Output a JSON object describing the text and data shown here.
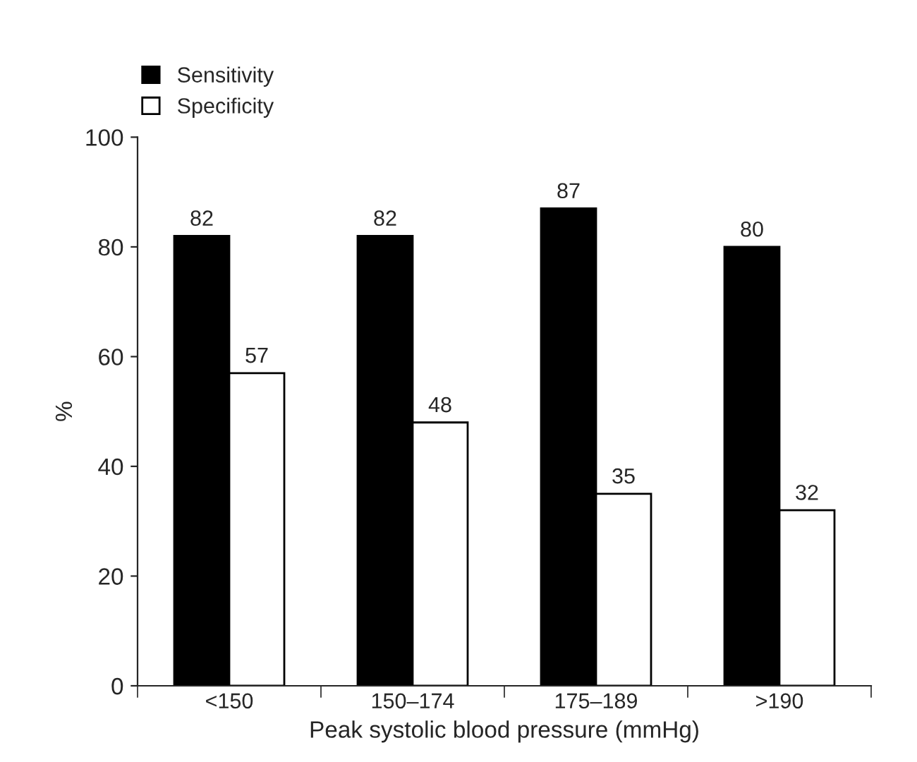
{
  "chart_data": {
    "type": "bar",
    "xlabel": "Peak systolic blood pressure (mmHg)",
    "ylabel": "%",
    "categories": [
      "<150",
      "150–174",
      "175–189",
      ">190"
    ],
    "series": [
      {
        "name": "Sensitivity",
        "color": "#000000",
        "values": [
          82,
          82,
          87,
          80
        ]
      },
      {
        "name": "Specificity",
        "color": "#ffffff",
        "values": [
          57,
          48,
          35,
          32
        ]
      }
    ],
    "ylim": [
      0,
      100
    ],
    "yticks": [
      0,
      20,
      40,
      60,
      80,
      100
    ],
    "data_labels": true,
    "legend": "top left",
    "grid": false
  }
}
